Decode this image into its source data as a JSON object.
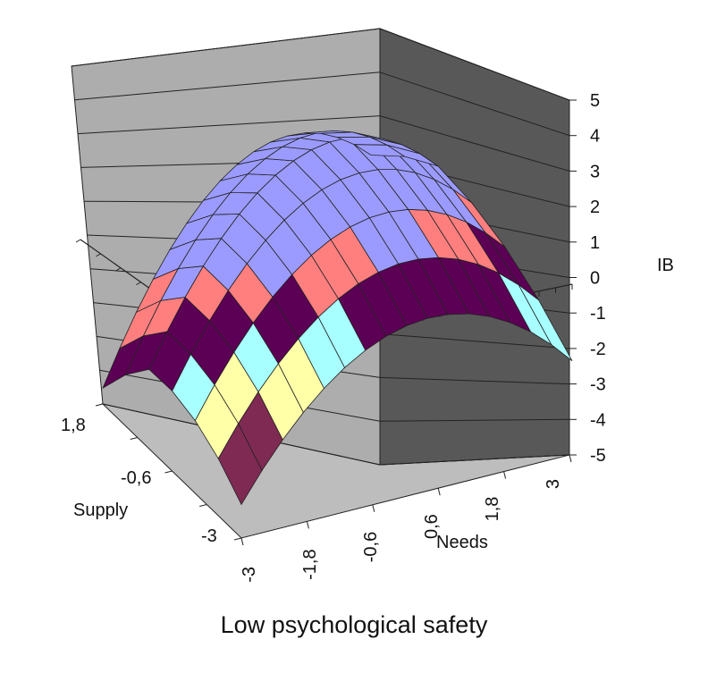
{
  "caption": "Low psychological safety",
  "chart_data": {
    "type": "surface",
    "title": "",
    "zlabel": "IB",
    "ylabel": "Supply",
    "xlabel": "Needs",
    "z_ticks": [
      "5",
      "4",
      "3",
      "2",
      "1",
      "0",
      "-1",
      "-2",
      "-3",
      "-4",
      "-5"
    ],
    "supply_ticks": [
      "1,8",
      "-0,6",
      "-3"
    ],
    "needs_ticks": [
      "-3",
      "-1,8",
      "-0,6",
      "0,6",
      "1,8",
      "3"
    ],
    "zlim": [
      -5,
      5
    ],
    "needs_range": [
      -3,
      3
    ],
    "supply_range": [
      -3,
      3
    ],
    "band_colors": {
      "-3_to_-2": "#7e2a52",
      "-2_to_-1": "#ffffa8",
      "-1_to_0": "#a8ffff",
      "0_to_1": "#5c0055",
      "1_to_2": "#ff7f7f",
      "2_to_5": "#9b9bff"
    },
    "wall_colors": {
      "back": "#adadad",
      "side": "#585858",
      "floor": "#bdbdbd"
    }
  }
}
